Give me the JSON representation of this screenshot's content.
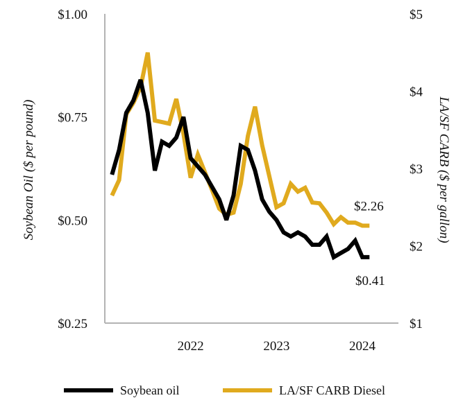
{
  "chart_data": {
    "type": "line",
    "title": "",
    "xlabel": "",
    "x_ticks": [
      "2022",
      "2023",
      "2024"
    ],
    "left_axis": {
      "label": "Soybean Oil ($ per pound)",
      "ticks": [
        "$0.25",
        "$0.50",
        "$0.75",
        "$1.00"
      ],
      "tick_values": [
        0.25,
        0.5,
        0.75,
        1.0
      ],
      "ylim": [
        0.25,
        1.0
      ]
    },
    "right_axis": {
      "label": "LA/SF CARB ($ per gallon)",
      "ticks": [
        "$1",
        "$2",
        "$3",
        "$4",
        "$5"
      ],
      "tick_values": [
        1,
        2,
        3,
        4,
        5
      ],
      "ylim": [
        1,
        5
      ]
    },
    "series": [
      {
        "name": "Soybean oil",
        "axis": "left",
        "color": "#000000",
        "start": 2021.583,
        "step_months": 1,
        "values": [
          0.61,
          0.67,
          0.76,
          0.79,
          0.84,
          0.76,
          0.62,
          0.69,
          0.68,
          0.7,
          0.75,
          0.65,
          0.63,
          0.61,
          0.58,
          0.55,
          0.5,
          0.56,
          0.68,
          0.67,
          0.62,
          0.55,
          0.52,
          0.5,
          0.47,
          0.46,
          0.47,
          0.46,
          0.44,
          0.44,
          0.46,
          0.41,
          0.42,
          0.43,
          0.45,
          0.41,
          0.41
        ],
        "end_label": "$0.41"
      },
      {
        "name": "LA/SF CARB Diesel",
        "axis": "right",
        "color": "#E0AA1E",
        "start": 2021.583,
        "step_months": 1,
        "values": [
          2.65,
          2.85,
          3.7,
          3.85,
          4.05,
          4.5,
          3.62,
          3.6,
          3.58,
          3.9,
          3.45,
          2.88,
          3.18,
          2.95,
          2.72,
          2.48,
          2.4,
          2.43,
          2.8,
          3.42,
          3.8,
          3.3,
          2.9,
          2.5,
          2.55,
          2.8,
          2.7,
          2.75,
          2.56,
          2.55,
          2.43,
          2.28,
          2.37,
          2.3,
          2.3,
          2.26,
          2.26
        ],
        "end_label": "$2.26"
      }
    ],
    "legend_position": "bottom"
  }
}
